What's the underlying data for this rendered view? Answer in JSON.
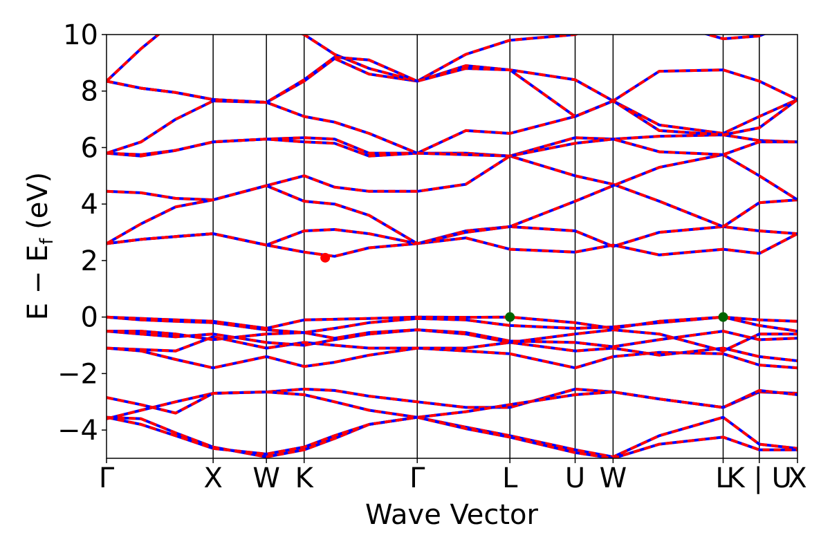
{
  "chart_data": {
    "type": "line",
    "title": "",
    "xlabel": "Wave Vector",
    "ylabel": "E − E_f (eV)",
    "ylabel_main": "E − E",
    "ylabel_sub": "f",
    "ylabel_unit": " (eV)",
    "xlim": [
      0,
      1
    ],
    "ylim": [
      -5,
      10
    ],
    "yticks": [
      -4,
      -2,
      0,
      2,
      4,
      6,
      8,
      10
    ],
    "ytick_labels": [
      "−4",
      "−2",
      "0",
      "2",
      "4",
      "6",
      "8",
      "10"
    ],
    "kpoint_labels": [
      "Γ",
      "X",
      "W",
      "K",
      "Γ",
      "L",
      "U",
      "W",
      "L",
      "K | U",
      "X"
    ],
    "kpoint_positions": [
      0.0,
      0.1543,
      0.2314,
      0.286,
      0.4497,
      0.5838,
      0.6782,
      0.7331,
      0.8924,
      0.9447,
      1.0
    ],
    "grid": false,
    "legend": "none",
    "styles": {
      "solid_color": "#0000ff",
      "dashed_color": "#ff0000",
      "vbm_marker_color": "#006400",
      "cbm_marker_color": "#ff0000"
    },
    "markers": [
      {
        "name": "CBM",
        "x": 0.3165,
        "y": 2.1
      },
      {
        "name": "VBM",
        "x": 0.5838,
        "y": 0.0
      },
      {
        "name": "VBM",
        "x": 0.8924,
        "y": 0.0
      }
    ],
    "bands": [
      {
        "x": [
          0,
          0.05,
          0.1,
          0.1543,
          0.2314,
          0.286,
          0.33,
          0.38,
          0.4497,
          0.52,
          0.5838,
          0.6782,
          0.7331,
          0.8,
          0.8924,
          0.9447,
          1.0
        ],
        "y": [
          -3.6,
          -3.3,
          -3.0,
          -2.7,
          -2.65,
          -2.55,
          -2.6,
          -2.8,
          -3.0,
          -3.2,
          -3.2,
          -2.55,
          -2.65,
          -2.9,
          -3.2,
          -2.65,
          -2.7
        ]
      },
      {
        "x": [
          0,
          0.05,
          0.1,
          0.1543,
          0.2314,
          0.286,
          0.33,
          0.38,
          0.4497,
          0.52,
          0.5838,
          0.6782,
          0.7331,
          0.8,
          0.8924,
          0.9447,
          1.0
        ],
        "y": [
          -2.85,
          -3.1,
          -3.4,
          -2.7,
          -2.65,
          -2.75,
          -3.0,
          -3.3,
          -3.55,
          -3.35,
          -3.1,
          -2.75,
          -2.65,
          -2.9,
          -3.2,
          -2.6,
          -2.75
        ]
      },
      {
        "x": [
          0,
          0.05,
          0.1,
          0.1543,
          0.2314,
          0.286,
          0.33,
          0.38,
          0.4497,
          0.52,
          0.5838,
          0.6782,
          0.7331,
          0.8,
          0.8924,
          0.9447,
          1.0
        ],
        "y": [
          -3.55,
          -3.6,
          -4.1,
          -4.6,
          -4.95,
          -4.7,
          -4.3,
          -3.8,
          -3.55,
          -3.9,
          -4.2,
          -4.7,
          -4.95,
          -4.2,
          -3.55,
          -4.5,
          -4.65
        ]
      },
      {
        "x": [
          0,
          0.05,
          0.1,
          0.1543,
          0.2314,
          0.286,
          0.33,
          0.38,
          0.4497,
          0.52,
          0.5838,
          0.6782,
          0.7331,
          0.8,
          0.8924,
          0.9447,
          1.0
        ],
        "y": [
          -3.55,
          -3.8,
          -4.2,
          -4.65,
          -4.85,
          -4.6,
          -4.2,
          -3.8,
          -3.55,
          -3.95,
          -4.25,
          -4.8,
          -5.0,
          -4.5,
          -4.25,
          -4.7,
          -4.7
        ]
      },
      {
        "x": [
          0,
          0.05,
          0.1,
          0.1543,
          0.2314,
          0.286,
          0.33,
          0.38,
          0.4497,
          0.52,
          0.5838,
          0.6782,
          0.7331,
          0.8,
          0.8924,
          0.9447,
          1.0
        ],
        "y": [
          -1.1,
          -1.2,
          -1.5,
          -1.8,
          -1.4,
          -1.75,
          -1.6,
          -1.35,
          -1.1,
          -1.2,
          -1.3,
          -1.8,
          -1.4,
          -1.25,
          -1.3,
          -1.7,
          -1.8
        ]
      },
      {
        "x": [
          0,
          0.05,
          0.1,
          0.1543,
          0.2314,
          0.286,
          0.33,
          0.38,
          0.4497,
          0.52,
          0.5838,
          0.6782,
          0.7331,
          0.8,
          0.8924,
          0.9447,
          1.0
        ],
        "y": [
          -1.1,
          -1.15,
          -1.2,
          -0.7,
          -1.1,
          -0.9,
          -1.0,
          -1.1,
          -1.1,
          -1.1,
          -0.9,
          -1.2,
          -1.1,
          -1.35,
          -1.1,
          -1.4,
          -1.55
        ]
      },
      {
        "x": [
          0,
          0.05,
          0.1,
          0.1543,
          0.2314,
          0.286,
          0.33,
          0.38,
          0.4497,
          0.52,
          0.5838,
          0.6782,
          0.7331,
          0.8,
          0.8924,
          0.9447,
          1.0
        ],
        "y": [
          -0.5,
          -0.6,
          -0.7,
          -0.6,
          -0.9,
          -1.0,
          -0.8,
          -0.6,
          -0.45,
          -0.6,
          -0.9,
          -0.6,
          -0.45,
          -0.6,
          -1.2,
          -0.6,
          -0.6
        ]
      },
      {
        "x": [
          0,
          0.05,
          0.1,
          0.1543,
          0.2314,
          0.286,
          0.33,
          0.38,
          0.4497,
          0.52,
          0.5838,
          0.6782,
          0.7331,
          0.8,
          0.8924,
          0.9447,
          1.0
        ],
        "y": [
          -0.5,
          -0.5,
          -0.6,
          -0.8,
          -0.6,
          -0.55,
          -0.75,
          -0.55,
          -0.45,
          -0.55,
          -0.85,
          -0.9,
          -1.05,
          -0.8,
          -0.5,
          -0.8,
          -0.75
        ]
      },
      {
        "x": [
          0,
          0.05,
          0.1,
          0.1543,
          0.2314,
          0.286,
          0.33,
          0.38,
          0.4497,
          0.52,
          0.5838,
          0.6782,
          0.7331,
          0.8,
          0.8924,
          0.9447,
          1.0
        ],
        "y": [
          0.0,
          -0.1,
          -0.15,
          -0.2,
          -0.45,
          -0.55,
          -0.4,
          -0.2,
          -0.05,
          -0.1,
          -0.3,
          -0.4,
          -0.35,
          -0.2,
          0.0,
          -0.3,
          -0.5
        ]
      },
      {
        "x": [
          0,
          0.05,
          0.1,
          0.1543,
          0.2314,
          0.286,
          0.33,
          0.38,
          0.4497,
          0.52,
          0.5838,
          0.6782,
          0.7331,
          0.8,
          0.8924,
          0.9447,
          1.0
        ],
        "y": [
          0.0,
          -0.05,
          -0.1,
          -0.15,
          -0.4,
          -0.1,
          -0.08,
          -0.05,
          0.0,
          -0.01,
          0.0,
          -0.2,
          -0.4,
          -0.15,
          0.0,
          -0.1,
          -0.15
        ]
      },
      {
        "x": [
          0,
          0.05,
          0.1,
          0.1543,
          0.2314,
          0.286,
          0.33,
          0.38,
          0.4497,
          0.52,
          0.5838,
          0.6782,
          0.7331,
          0.8,
          0.8924,
          0.9447,
          1.0
        ],
        "y": [
          2.6,
          2.75,
          2.85,
          2.95,
          2.55,
          2.3,
          2.15,
          2.45,
          2.6,
          3.05,
          3.2,
          3.05,
          2.5,
          3.0,
          3.2,
          3.05,
          2.95
        ]
      },
      {
        "x": [
          0,
          0.05,
          0.1,
          0.1543,
          0.2314,
          0.286,
          0.33,
          0.38,
          0.4497,
          0.52,
          0.5838,
          0.6782,
          0.7331,
          0.8,
          0.8924,
          0.9447,
          1.0
        ],
        "y": [
          2.6,
          2.75,
          2.85,
          2.95,
          2.55,
          3.05,
          3.1,
          2.95,
          2.6,
          2.8,
          2.4,
          2.3,
          2.55,
          2.2,
          2.4,
          2.25,
          2.95
        ]
      },
      {
        "x": [
          0,
          0.05,
          0.1,
          0.1543,
          0.2314,
          0.286,
          0.33,
          0.38,
          0.4497,
          0.52,
          0.5838,
          0.6782,
          0.7331,
          0.8,
          0.8924,
          0.9447,
          1.0
        ],
        "y": [
          4.45,
          4.4,
          4.2,
          4.15,
          4.65,
          5.0,
          4.6,
          4.45,
          4.45,
          4.7,
          5.7,
          5.0,
          4.7,
          4.1,
          3.2,
          4.05,
          4.15
        ]
      },
      {
        "x": [
          0,
          0.05,
          0.1,
          0.1543,
          0.2314,
          0.286,
          0.33,
          0.38,
          0.4497,
          0.52,
          0.5838,
          0.6782,
          0.7331,
          0.8,
          0.8924,
          0.9447,
          1.0
        ],
        "y": [
          2.6,
          3.3,
          3.9,
          4.15,
          4.65,
          4.1,
          4.0,
          3.6,
          2.6,
          3.0,
          3.2,
          4.1,
          4.65,
          5.3,
          5.75,
          5.0,
          4.15
        ]
      },
      {
        "x": [
          0,
          0.05,
          0.1,
          0.1543,
          0.2314,
          0.286,
          0.33,
          0.38,
          0.4497,
          0.52,
          0.5838,
          0.6782,
          0.7331,
          0.8,
          0.8924,
          0.9447,
          1.0
        ],
        "y": [
          5.8,
          5.7,
          5.9,
          6.2,
          6.3,
          6.35,
          6.3,
          5.8,
          5.8,
          6.6,
          6.5,
          7.1,
          7.65,
          6.8,
          6.5,
          7.1,
          7.7
        ]
      },
      {
        "x": [
          0,
          0.05,
          0.1,
          0.1543,
          0.2314,
          0.286,
          0.33,
          0.38,
          0.4497,
          0.52,
          0.5838,
          0.6782,
          0.7331,
          0.8,
          0.8924,
          0.9447,
          1.0
        ],
        "y": [
          5.8,
          5.75,
          5.9,
          6.2,
          6.3,
          6.2,
          6.15,
          5.7,
          5.8,
          5.8,
          5.7,
          6.35,
          6.3,
          6.4,
          6.45,
          6.25,
          6.2
        ]
      },
      {
        "x": [
          0,
          0.05,
          0.1,
          0.1543,
          0.2314,
          0.286,
          0.33,
          0.38,
          0.4497,
          0.52,
          0.5838,
          0.6782,
          0.7331,
          0.8,
          0.8924,
          0.9447,
          1.0
        ],
        "y": [
          5.8,
          6.2,
          7.0,
          7.65,
          7.6,
          7.1,
          6.9,
          6.5,
          5.8,
          5.75,
          5.7,
          6.15,
          6.3,
          5.85,
          5.75,
          6.2,
          6.2
        ]
      },
      {
        "x": [
          0,
          0.05,
          0.1,
          0.1543,
          0.2314,
          0.286,
          0.33,
          0.38,
          0.4497,
          0.52,
          0.5838,
          0.6782,
          0.7331,
          0.8,
          0.8924,
          0.9447,
          1.0
        ],
        "y": [
          8.35,
          8.1,
          7.95,
          7.7,
          7.6,
          8.35,
          9.15,
          8.6,
          8.35,
          8.9,
          8.75,
          8.4,
          7.65,
          8.7,
          8.75,
          8.35,
          7.7
        ]
      },
      {
        "x": [
          0,
          0.05,
          0.1,
          0.1543,
          0.2314,
          0.286,
          0.33,
          0.38,
          0.4497,
          0.52,
          0.5838,
          0.6782,
          0.7331,
          0.8,
          0.8924,
          0.9447,
          1.0
        ],
        "y": [
          8.35,
          9.5,
          10.5,
          10.5,
          10.5,
          10.0,
          9.3,
          8.8,
          8.35,
          9.3,
          9.8,
          10.0,
          10.5,
          10.5,
          9.85,
          9.95,
          10.5
        ]
      },
      {
        "x": [
          0,
          0.05,
          0.1,
          0.1543,
          0.2314,
          0.286,
          0.33,
          0.38,
          0.4497,
          0.52,
          0.5838,
          0.6782,
          0.7331,
          0.8,
          0.8924,
          0.9447,
          1.0
        ],
        "y": [
          8.35,
          8.1,
          7.95,
          7.7,
          7.6,
          8.4,
          9.2,
          9.1,
          8.35,
          8.8,
          8.75,
          7.1,
          7.65,
          6.6,
          6.45,
          6.7,
          7.7
        ]
      }
    ]
  }
}
